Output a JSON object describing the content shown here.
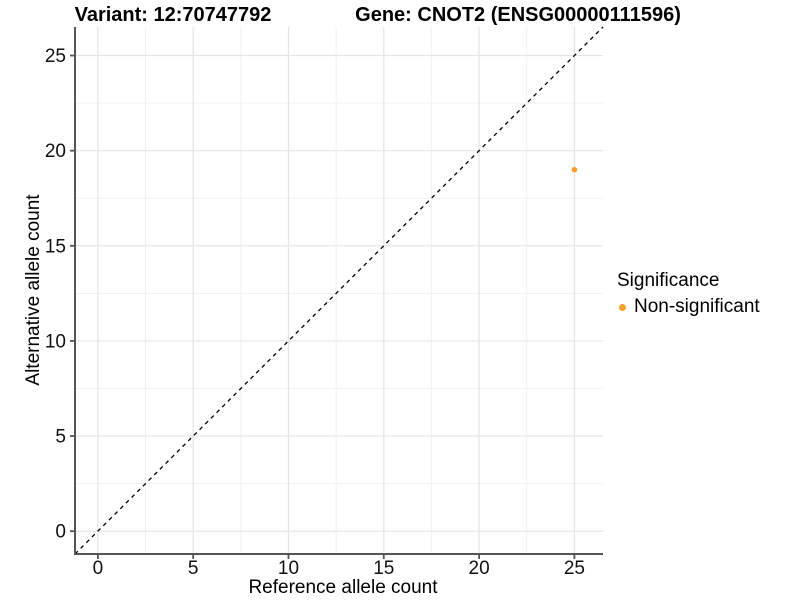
{
  "chart_data": {
    "type": "scatter",
    "titles": {
      "left": "Variant: 12:70747792",
      "right": "Gene: CNOT2 (ENSG00000111596)"
    },
    "xlabel": "Reference allele count",
    "ylabel": "Alternative allele count",
    "xlim": [
      -1.2,
      26.5
    ],
    "ylim": [
      -1.2,
      26.5
    ],
    "xticks": [
      0,
      5,
      10,
      15,
      20,
      25
    ],
    "yticks": [
      0,
      5,
      10,
      15,
      20,
      25
    ],
    "minor_tick_step": 2.5,
    "grid": true,
    "identity_line": {
      "style": "dashed",
      "equation": "y = x",
      "color": "#000000"
    },
    "series": [
      {
        "name": "Non-significant",
        "color": "#F9A02B",
        "points": [
          {
            "x": 25,
            "y": 19
          }
        ]
      }
    ],
    "legend": {
      "title": "Significance",
      "position": "right",
      "items": [
        {
          "label": "Non-significant",
          "color": "#F9A02B"
        }
      ]
    }
  },
  "colors": {
    "background": "#ffffff",
    "grid_major": "#e4e4e4",
    "grid_minor": "#f1f1f1",
    "axis_line": "#555555",
    "tick_mark": "#555555",
    "tick_label": "#111111",
    "dashed_line": "#000000",
    "point_orange": "#F9A02B"
  }
}
